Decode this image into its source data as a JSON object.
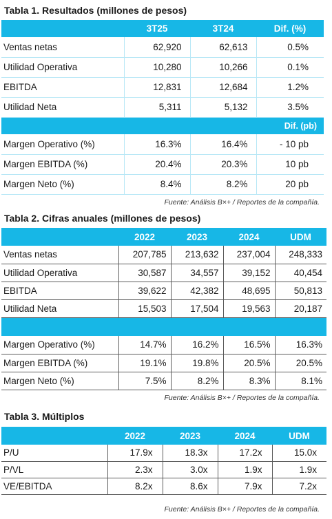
{
  "table1": {
    "title": "Tabla 1. Resultados (millones de pesos)",
    "headers": [
      "3T25",
      "3T24",
      "Dif. (%)"
    ],
    "rows": [
      {
        "label": "Ventas netas",
        "v1": "62,920",
        "v2": "62,613",
        "dif": "0.5%"
      },
      {
        "label": "Utilidad Operativa",
        "v1": "10,280",
        "v2": "10,266",
        "dif": "0.1%"
      },
      {
        "label": "EBITDA",
        "v1": "12,831",
        "v2": "12,684",
        "dif": "1.2%"
      },
      {
        "label": "Utilidad Neta",
        "v1": "5,311",
        "v2": "5,132",
        "dif": "3.5%"
      }
    ],
    "margin_header": "Dif. (pb)",
    "margins": [
      {
        "label": "Margen Operativo (%)",
        "v1": "16.3%",
        "v2": "16.4%",
        "dif": "- 10 pb"
      },
      {
        "label": "Margen EBITDA (%)",
        "v1": "20.4%",
        "v2": "20.3%",
        "dif": "10 pb"
      },
      {
        "label": "Margen Neto (%)",
        "v1": "8.4%",
        "v2": "8.2%",
        "dif": "20 pb"
      }
    ],
    "source": "Fuente: Análisis B×+ / Reportes de la compañía."
  },
  "table2": {
    "title": "Tabla 2. Cifras anuales (millones de pesos)",
    "headers": [
      "2022",
      "2023",
      "2024",
      "UDM"
    ],
    "rows": [
      {
        "label": "Ventas netas",
        "v": [
          "207,785",
          "213,632",
          "237,004",
          "248,333"
        ]
      },
      {
        "label": "Utilidad Operativa",
        "v": [
          "30,587",
          "34,557",
          "39,152",
          "40,454"
        ]
      },
      {
        "label": "EBITDA",
        "v": [
          "39,622",
          "42,382",
          "48,695",
          "50,813"
        ]
      },
      {
        "label": "Utilidad Neta",
        "v": [
          "15,503",
          "17,504",
          "19,563",
          "20,187"
        ]
      }
    ],
    "margins": [
      {
        "label": "Margen Operativo (%)",
        "v": [
          "14.7%",
          "16.2%",
          "16.5%",
          "16.3%"
        ]
      },
      {
        "label": "Margen EBITDA (%)",
        "v": [
          "19.1%",
          "19.8%",
          "20.5%",
          "20.5%"
        ]
      },
      {
        "label": "Margen Neto (%)",
        "v": [
          "7.5%",
          "8.2%",
          "8.3%",
          "8.1%"
        ]
      }
    ],
    "source": "Fuente: Análisis B×+ / Reportes de la compañía."
  },
  "table3": {
    "title": "Tabla 3. Múltiplos",
    "headers": [
      "2022",
      "2023",
      "2024",
      "UDM"
    ],
    "rows": [
      {
        "label": "P/U",
        "v": [
          "17.9x",
          "18.3x",
          "17.2x",
          "15.0x"
        ]
      },
      {
        "label": "P/VL",
        "v": [
          "2.3x",
          "3.0x",
          "1.9x",
          "1.9x"
        ]
      },
      {
        "label": "VE/EBITDA",
        "v": [
          "8.2x",
          "8.6x",
          "7.9x",
          "7.2x"
        ]
      }
    ],
    "source": "Fuente: Análisis B×+ / Reportes de la compañía."
  }
}
